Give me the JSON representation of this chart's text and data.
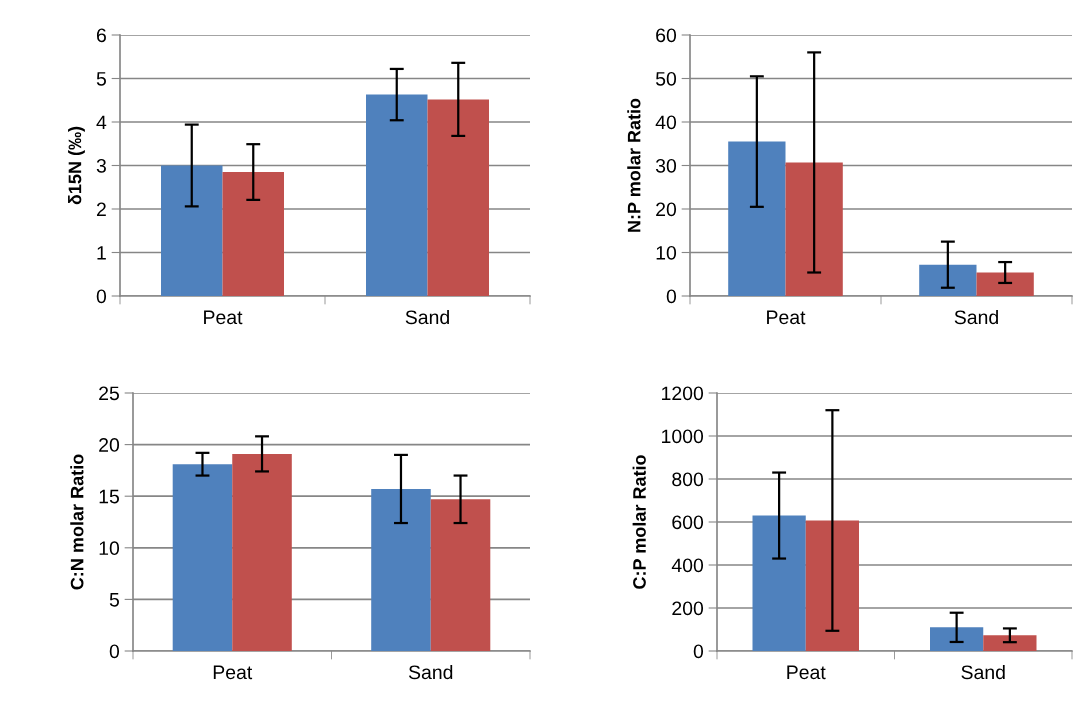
{
  "chart_data": [
    {
      "type": "bar",
      "ylabel": "δ15N (‰)",
      "categories": [
        "Peat",
        "Sand"
      ],
      "ylim": [
        0,
        6
      ],
      "yticks": [
        0,
        1,
        2,
        3,
        4,
        5,
        6
      ],
      "grid": "y",
      "series": [
        {
          "color": "#4f81bd",
          "values": [
            3.0,
            4.63
          ],
          "errors": [
            0.94,
            0.59
          ]
        },
        {
          "color": "#c0504d",
          "values": [
            2.85,
            4.52
          ],
          "errors": [
            0.64,
            0.84
          ]
        }
      ]
    },
    {
      "type": "bar",
      "ylabel": "N:P molar Ratio",
      "categories": [
        "Peat",
        "Sand"
      ],
      "ylim": [
        0,
        60
      ],
      "yticks": [
        0,
        10,
        20,
        30,
        40,
        50,
        60
      ],
      "grid": "y",
      "series": [
        {
          "color": "#4f81bd",
          "values": [
            35.5,
            7.2
          ],
          "errors": [
            15.0,
            5.3
          ]
        },
        {
          "color": "#c0504d",
          "values": [
            30.7,
            5.4
          ],
          "errors": [
            25.3,
            2.4
          ]
        }
      ]
    },
    {
      "type": "bar",
      "ylabel": "C:N molar Ratio",
      "categories": [
        "Peat",
        "Sand"
      ],
      "ylim": [
        0,
        25
      ],
      "yticks": [
        0,
        5,
        10,
        15,
        20,
        25
      ],
      "grid": "y",
      "series": [
        {
          "color": "#4f81bd",
          "values": [
            18.1,
            15.7
          ],
          "errors": [
            1.1,
            3.3
          ]
        },
        {
          "color": "#c0504d",
          "values": [
            19.1,
            14.7
          ],
          "errors": [
            1.7,
            2.3
          ]
        }
      ]
    },
    {
      "type": "bar",
      "ylabel": "C:P molar Ratio",
      "categories": [
        "Peat",
        "Sand"
      ],
      "ylim": [
        0,
        1200
      ],
      "yticks": [
        0,
        200,
        400,
        600,
        800,
        1000,
        1200
      ],
      "grid": "y",
      "series": [
        {
          "color": "#4f81bd",
          "values": [
            630,
            110
          ],
          "errors": [
            200,
            68
          ]
        },
        {
          "color": "#c0504d",
          "values": [
            607,
            73
          ],
          "errors": [
            513,
            32
          ]
        }
      ]
    }
  ]
}
